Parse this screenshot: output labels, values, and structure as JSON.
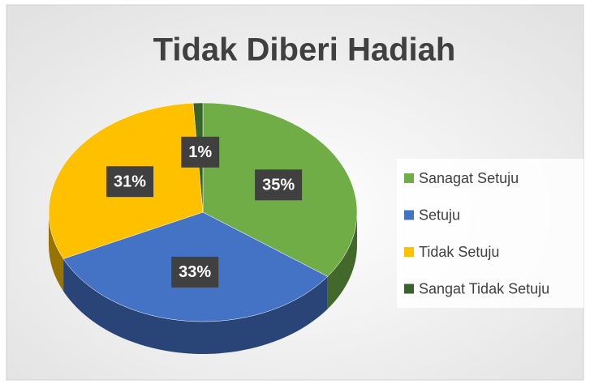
{
  "chart_data": {
    "type": "pie",
    "title": "Tidak Diberi Hadiah",
    "categories": [
      "Sanagat Setuju",
      "Setuju",
      "Tidak Setuju",
      "Sangat Tidak Setuju"
    ],
    "values": [
      35,
      33,
      31,
      1
    ],
    "value_labels": [
      "35%",
      "33%",
      "31%",
      "1%"
    ],
    "colors": [
      "#70ad47",
      "#4472c4",
      "#ffc000",
      "#38632a"
    ],
    "legend": "right"
  }
}
